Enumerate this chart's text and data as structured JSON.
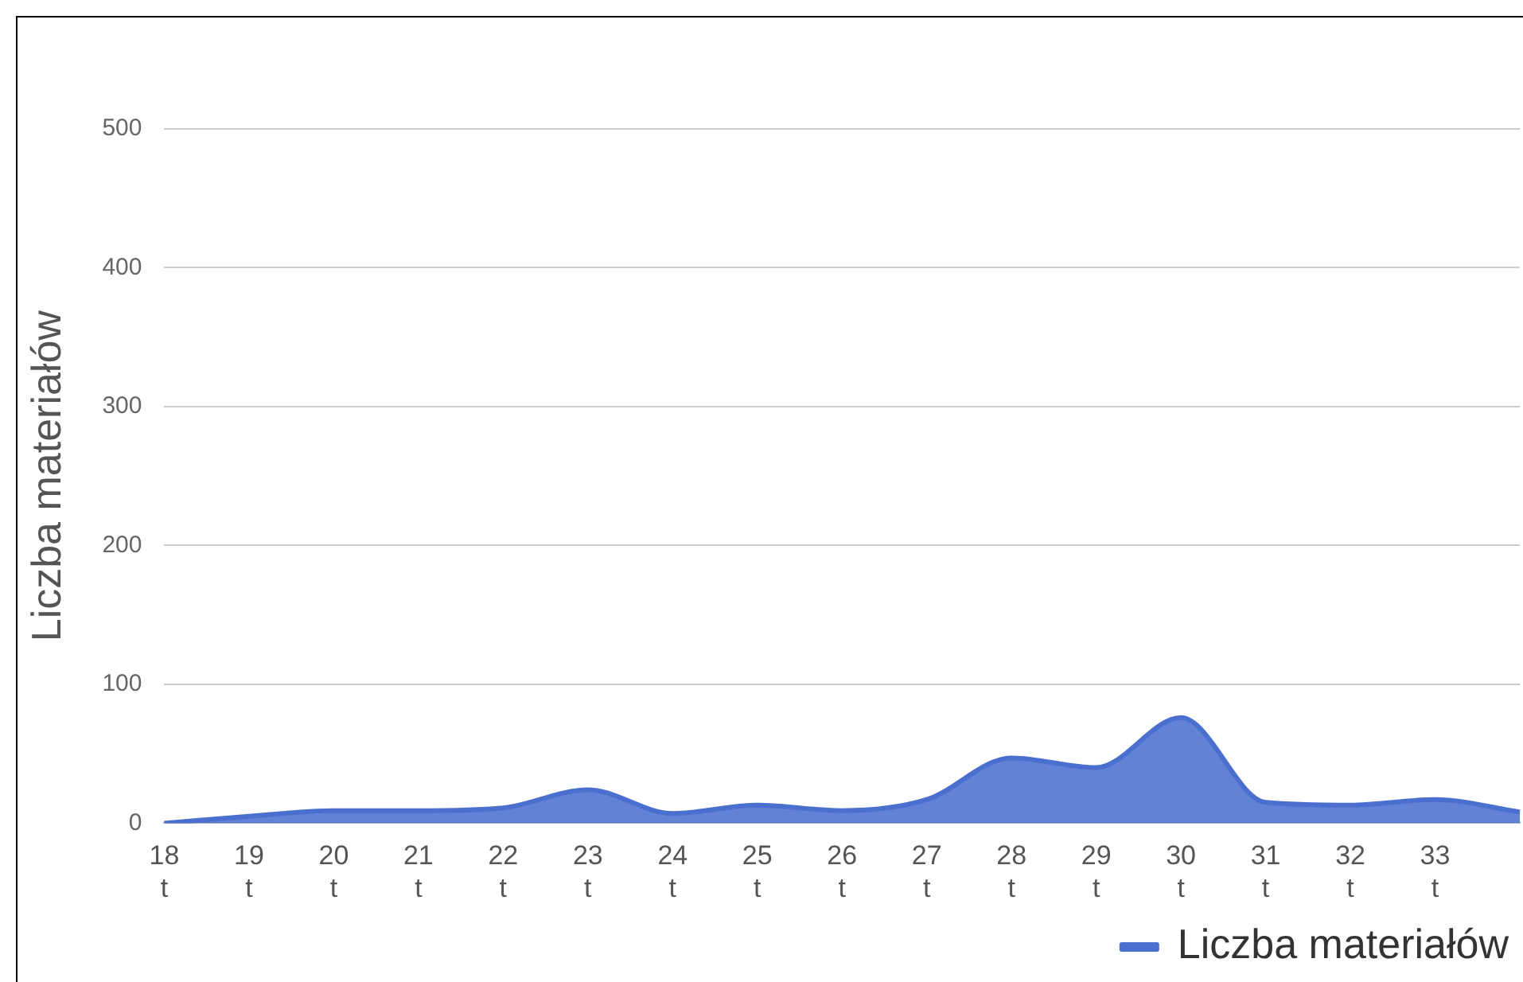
{
  "chart_data": {
    "type": "area",
    "ylabel": "Liczba materiałów",
    "categories": [
      "18 t",
      "19 t",
      "20 t",
      "21 t",
      "22 t",
      "23 t",
      "24 t",
      "25 t",
      "26 t",
      "27 t",
      "28 t",
      "29 t",
      "30 t",
      "31 t",
      "32 t",
      "33 t",
      null
    ],
    "series": [
      {
        "name": "Liczba materiałów",
        "color": "#4a6fcf",
        "values": [
          0,
          5,
          9,
          9,
          11,
          24,
          7,
          13,
          9,
          17,
          47,
          40,
          76,
          15,
          13,
          17,
          8
        ]
      }
    ],
    "ylim": [
      0,
      500
    ],
    "yticks": [
      0,
      100,
      200,
      300,
      400,
      500
    ],
    "grid": "y",
    "legend": "bottom right"
  }
}
